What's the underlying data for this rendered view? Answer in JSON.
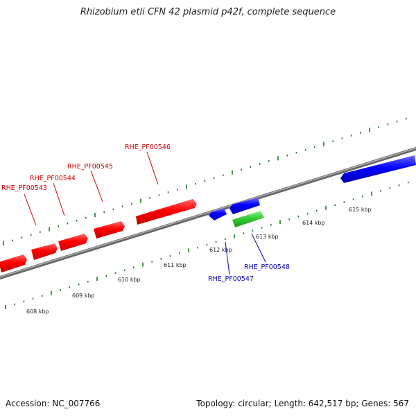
{
  "title": "Rhizobium etli CFN 42 plasmid p42f, complete sequence",
  "footer": {
    "accession": "Accession: NC_007766",
    "summary": "Topology: circular; Length: 642,517 bp; Genes: 567"
  },
  "colors": {
    "forward_gene": "#ff0000",
    "reverse_gene": "#0000ff",
    "other_gene": "#33cc33",
    "backbone": "#888888",
    "ticks": "#227722",
    "forward_label": "#cc0000",
    "reverse_label": "#0000bb"
  },
  "scale_labels": [
    "608 kbp",
    "609 kbp",
    "610 kbp",
    "611 kbp",
    "612 kbp",
    "613 kbp",
    "614 kbp",
    "615 kbp"
  ],
  "gene_labels": {
    "forward": [
      "RHE_PF00543",
      "RHE_PF00544",
      "RHE_PF00545",
      "RHE_PF00546"
    ],
    "reverse": [
      "RHE_PF00547",
      "RHE_PF00548"
    ]
  }
}
